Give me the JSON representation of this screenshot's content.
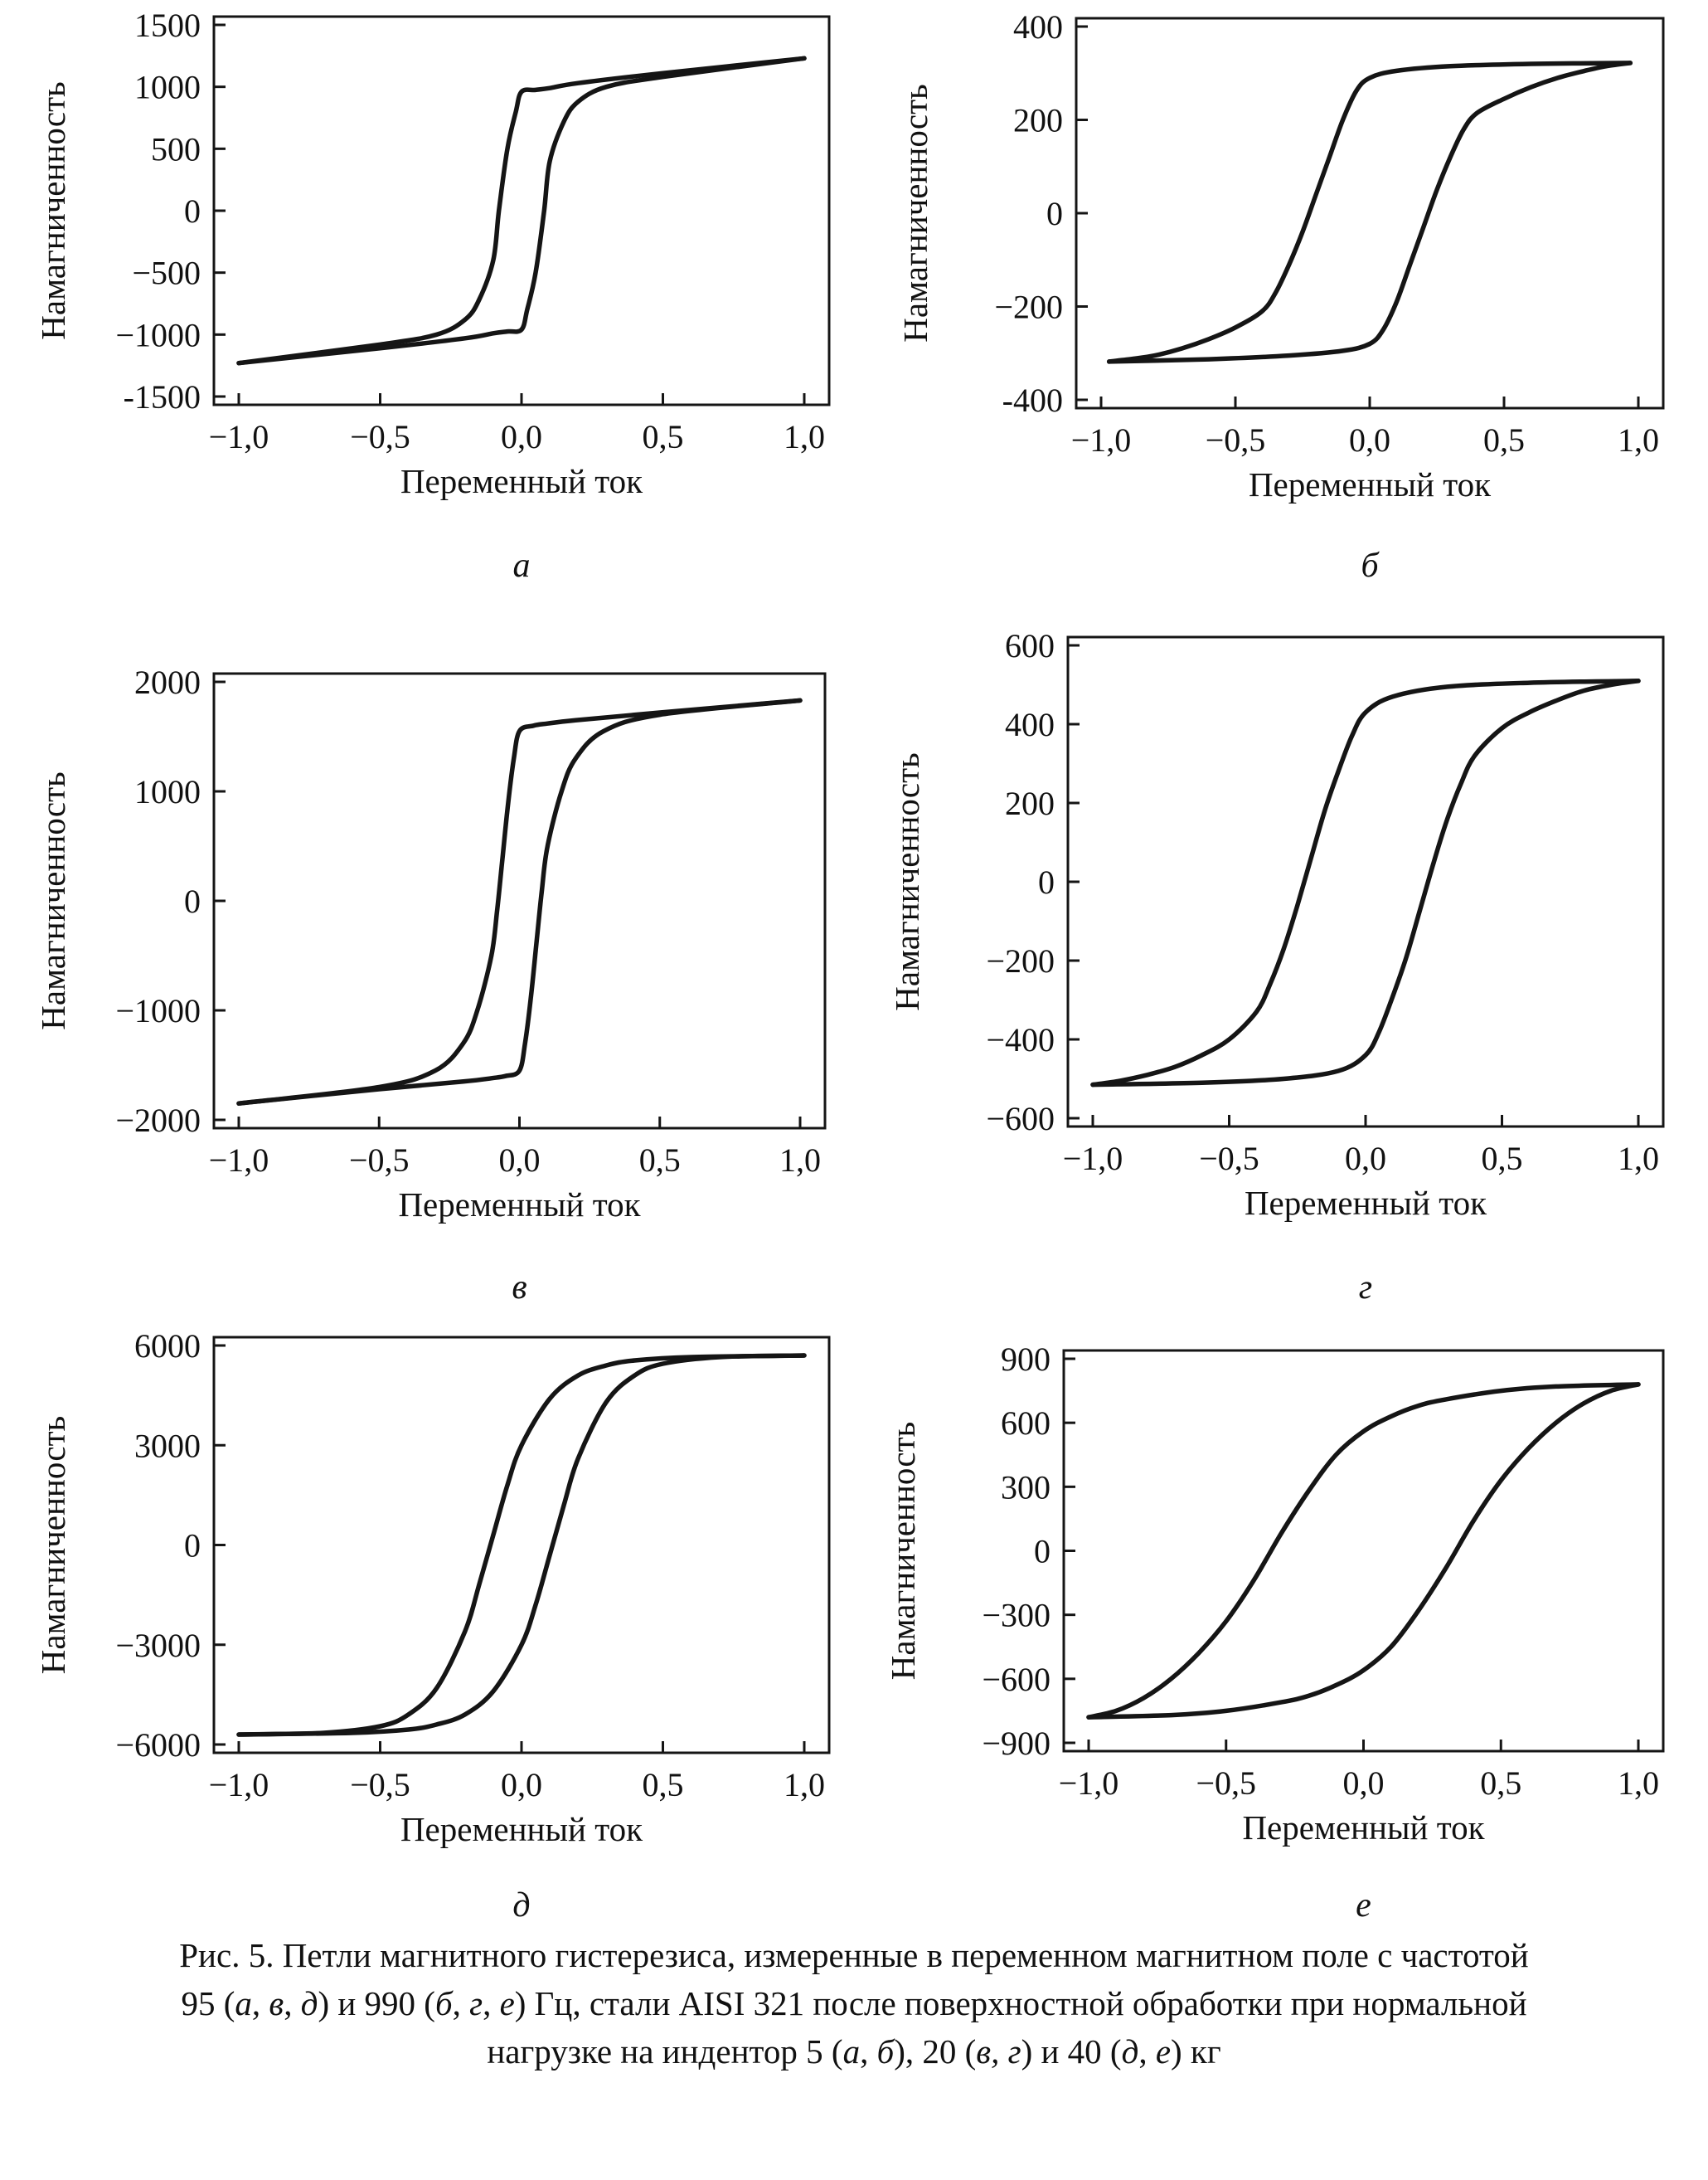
{
  "chart_data": [
    {
      "type": "line",
      "panel_label": "а",
      "xlabel": "Переменный ток",
      "ylabel": "Намагниченность",
      "xlim": [
        -1.0,
        1.0
      ],
      "ylim": [
        -1500,
        1500
      ],
      "xticks": [
        "−1,0",
        "−0,5",
        "0,0",
        "0,5",
        "1,0"
      ],
      "xtick_values": [
        -1.0,
        -0.5,
        0.0,
        0.5,
        1.0
      ],
      "yticks": [
        "1500",
        "1000",
        "500",
        "0",
        "−500",
        "−1000",
        "-1500"
      ],
      "ytick_values": [
        1500,
        1000,
        500,
        0,
        -500,
        -1000,
        -1500
      ],
      "branches": [
        {
          "name": "",
          "x": [
            1.0,
            0.5,
            0.2,
            0.1,
            0.05,
            0.0,
            -0.02,
            -0.05,
            -0.08,
            -0.1,
            -0.15,
            -0.2,
            -0.3,
            -0.5,
            -1.0
          ],
          "y": [
            1230,
            1110,
            1030,
            990,
            975,
            960,
            800,
            500,
            0,
            -400,
            -720,
            -880,
            -1000,
            -1080,
            -1230
          ]
        },
        {
          "name": "",
          "x": [
            -1.0,
            -0.5,
            -0.2,
            -0.1,
            -0.05,
            0.0,
            0.02,
            0.05,
            0.08,
            0.1,
            0.15,
            0.2,
            0.3,
            0.5,
            1.0
          ],
          "y": [
            -1230,
            -1110,
            -1030,
            -990,
            -975,
            -960,
            -800,
            -500,
            0,
            400,
            720,
            880,
            1000,
            1080,
            1230
          ]
        }
      ]
    },
    {
      "type": "line",
      "panel_label": "б",
      "xlabel": "Переменный ток",
      "ylabel": "Намагниченность",
      "xlim": [
        -1.0,
        1.0
      ],
      "ylim": [
        -400,
        400
      ],
      "xticks": [
        "−1,0",
        "−0,5",
        "0,0",
        "0,5",
        "1,0"
      ],
      "xtick_values": [
        -1.0,
        -0.5,
        0.0,
        0.5,
        1.0
      ],
      "yticks": [
        "400",
        "200",
        "0",
        "−200",
        "-400"
      ],
      "ytick_values": [
        400,
        200,
        0,
        -200,
        -400
      ],
      "branches": [
        {
          "name": "",
          "x": [
            0.97,
            0.6,
            0.3,
            0.1,
            0.0,
            -0.05,
            -0.1,
            -0.15,
            -0.2,
            -0.25,
            -0.3,
            -0.35,
            -0.4,
            -0.5,
            -0.6,
            -0.7,
            -0.8,
            -0.88,
            -0.97
          ],
          "y": [
            322,
            320,
            315,
            305,
            290,
            262,
            200,
            120,
            40,
            -40,
            -110,
            -170,
            -210,
            -245,
            -270,
            -290,
            -305,
            -312,
            -318
          ]
        },
        {
          "name": "",
          "x": [
            -0.97,
            -0.6,
            -0.3,
            -0.1,
            0.0,
            0.05,
            0.1,
            0.15,
            0.2,
            0.25,
            0.3,
            0.35,
            0.4,
            0.5,
            0.6,
            0.7,
            0.8,
            0.88,
            0.97
          ],
          "y": [
            -318,
            -313,
            -305,
            -295,
            -280,
            -250,
            -190,
            -110,
            -30,
            50,
            120,
            180,
            215,
            245,
            270,
            290,
            305,
            315,
            322
          ]
        }
      ]
    },
    {
      "type": "line",
      "panel_label": "в",
      "xlabel": "Переменный ток",
      "ylabel": "Намагниченность",
      "xlim": [
        -1.0,
        1.0
      ],
      "ylim": [
        -2000,
        2000
      ],
      "xticks": [
        "−1,0",
        "−0,5",
        "0,0",
        "0,5",
        "1,0"
      ],
      "xtick_values": [
        -1.0,
        -0.5,
        0.0,
        0.5,
        1.0
      ],
      "yticks": [
        "2000",
        "1000",
        "0",
        "−1000",
        "−2000"
      ],
      "ytick_values": [
        2000,
        1000,
        0,
        -1000,
        -2000
      ],
      "branches": [
        {
          "name": "",
          "x": [
            1.0,
            0.5,
            0.2,
            0.1,
            0.05,
            0.0,
            -0.02,
            -0.04,
            -0.06,
            -0.08,
            -0.1,
            -0.15,
            -0.2,
            -0.3,
            -0.5,
            -1.0
          ],
          "y": [
            1830,
            1720,
            1650,
            1620,
            1600,
            1550,
            1300,
            900,
            400,
            -100,
            -500,
            -1000,
            -1300,
            -1550,
            -1700,
            -1850
          ]
        },
        {
          "name": "",
          "x": [
            -1.0,
            -0.5,
            -0.2,
            -0.1,
            -0.05,
            0.0,
            0.02,
            0.04,
            0.06,
            0.08,
            0.1,
            0.15,
            0.2,
            0.3,
            0.5,
            1.0
          ],
          "y": [
            -1850,
            -1720,
            -1650,
            -1620,
            -1600,
            -1550,
            -1300,
            -900,
            -400,
            100,
            500,
            1000,
            1300,
            1550,
            1700,
            1830
          ]
        }
      ]
    },
    {
      "type": "line",
      "panel_label": "г",
      "xlabel": "Переменный ток",
      "ylabel": "Намагниченность",
      "xlim": [
        -1.0,
        1.0
      ],
      "ylim": [
        -600,
        600
      ],
      "xticks": [
        "−1,0",
        "−0,5",
        "0,0",
        "0,5",
        "1,0"
      ],
      "xtick_values": [
        -1.0,
        -0.5,
        0.0,
        0.5,
        1.0
      ],
      "yticks": [
        "600",
        "400",
        "200",
        "0",
        "−200",
        "−400",
        "−600"
      ],
      "ytick_values": [
        600,
        400,
        200,
        0,
        -200,
        -400,
        -600
      ],
      "branches": [
        {
          "name": "",
          "x": [
            1.0,
            0.6,
            0.3,
            0.1,
            0.0,
            -0.05,
            -0.1,
            -0.15,
            -0.2,
            -0.25,
            -0.3,
            -0.35,
            -0.4,
            -0.5,
            -0.6,
            -0.7,
            -0.8,
            -0.9,
            -1.0
          ],
          "y": [
            510,
            505,
            495,
            470,
            430,
            370,
            280,
            180,
            60,
            -60,
            -170,
            -260,
            -330,
            -400,
            -440,
            -470,
            -490,
            -505,
            -515
          ]
        },
        {
          "name": "",
          "x": [
            -1.0,
            -0.6,
            -0.3,
            -0.1,
            0.0,
            0.05,
            0.1,
            0.15,
            0.2,
            0.25,
            0.3,
            0.35,
            0.4,
            0.5,
            0.6,
            0.7,
            0.8,
            0.9,
            1.0
          ],
          "y": [
            -515,
            -510,
            -500,
            -480,
            -440,
            -380,
            -290,
            -190,
            -70,
            50,
            160,
            250,
            320,
            390,
            430,
            460,
            485,
            500,
            510
          ]
        }
      ]
    },
    {
      "type": "line",
      "panel_label": "д",
      "xlabel": "Переменный ток",
      "ylabel": "Намагниченность",
      "xlim": [
        -1.0,
        1.0
      ],
      "ylim": [
        -6000,
        6000
      ],
      "xticks": [
        "−1,0",
        "−0,5",
        "0,0",
        "0,5",
        "1,0"
      ],
      "xtick_values": [
        -1.0,
        -0.5,
        0.0,
        0.5,
        1.0
      ],
      "yticks": [
        "6000",
        "3000",
        "0",
        "−3000",
        "−6000"
      ],
      "ytick_values": [
        6000,
        3000,
        0,
        -3000,
        -6000
      ],
      "branches": [
        {
          "name": "",
          "x": [
            1.0,
            0.6,
            0.4,
            0.3,
            0.2,
            0.1,
            0.0,
            -0.05,
            -0.1,
            -0.15,
            -0.2,
            -0.3,
            -0.4,
            -0.5,
            -0.7,
            -1.0
          ],
          "y": [
            5700,
            5650,
            5550,
            5400,
            5100,
            4400,
            3000,
            1800,
            300,
            -1200,
            -2600,
            -4300,
            -5100,
            -5450,
            -5650,
            -5700
          ]
        },
        {
          "name": "",
          "x": [
            -1.0,
            -0.6,
            -0.4,
            -0.3,
            -0.2,
            -0.1,
            0.0,
            0.05,
            0.1,
            0.15,
            0.2,
            0.3,
            0.4,
            0.5,
            0.7,
            1.0
          ],
          "y": [
            -5700,
            -5650,
            -5550,
            -5400,
            -5100,
            -4400,
            -3000,
            -1800,
            -300,
            1200,
            2600,
            4300,
            5100,
            5450,
            5650,
            5700
          ]
        }
      ]
    },
    {
      "type": "line",
      "panel_label": "е",
      "xlabel": "Переменный ток",
      "ylabel": "Намагниченность",
      "xlim": [
        -1.0,
        1.0
      ],
      "ylim": [
        -900,
        900
      ],
      "xticks": [
        "−1,0",
        "−0,5",
        "0,0",
        "0,5",
        "1,0"
      ],
      "xtick_values": [
        -1.0,
        -0.5,
        0.0,
        0.5,
        1.0
      ],
      "yticks": [
        "900",
        "600",
        "300",
        "0",
        "−300",
        "−600",
        "−900"
      ],
      "ytick_values": [
        900,
        600,
        300,
        0,
        -300,
        -600,
        -900
      ],
      "branches": [
        {
          "name": "",
          "x": [
            1.0,
            0.7,
            0.5,
            0.3,
            0.2,
            0.1,
            0.0,
            -0.1,
            -0.2,
            -0.3,
            -0.4,
            -0.5,
            -0.6,
            -0.7,
            -0.8,
            -0.9,
            -1.0
          ],
          "y": [
            780,
            770,
            750,
            710,
            680,
            630,
            560,
            450,
            280,
            80,
            -140,
            -330,
            -480,
            -600,
            -690,
            -750,
            -780
          ]
        },
        {
          "name": "",
          "x": [
            -1.0,
            -0.7,
            -0.5,
            -0.3,
            -0.2,
            -0.1,
            0.0,
            0.1,
            0.2,
            0.3,
            0.4,
            0.5,
            0.6,
            0.7,
            0.8,
            0.9,
            1.0
          ],
          "y": [
            -780,
            -770,
            -750,
            -710,
            -680,
            -630,
            -560,
            -450,
            -280,
            -80,
            140,
            330,
            480,
            600,
            690,
            750,
            780
          ]
        }
      ]
    }
  ],
  "caption": {
    "line1": "Рис. 5. Петли магнитного гистерезиса, измеренные в переменном магнитном поле с частотой",
    "line2": [
      {
        "t": "95 (",
        "i": false
      },
      {
        "t": "а",
        "i": true
      },
      {
        "t": ", ",
        "i": false
      },
      {
        "t": "в",
        "i": true
      },
      {
        "t": ", ",
        "i": false
      },
      {
        "t": "д",
        "i": true
      },
      {
        "t": ") и 990 (",
        "i": false
      },
      {
        "t": "б",
        "i": true
      },
      {
        "t": ", ",
        "i": false
      },
      {
        "t": "г",
        "i": true
      },
      {
        "t": ", ",
        "i": false
      },
      {
        "t": "е",
        "i": true
      },
      {
        "t": ") Гц, стали AISI 321 после поверхностной обработки при нормальной",
        "i": false
      }
    ],
    "line3": [
      {
        "t": "нагрузке на индентор 5 (",
        "i": false
      },
      {
        "t": "а",
        "i": true
      },
      {
        "t": ", ",
        "i": false
      },
      {
        "t": "б",
        "i": true
      },
      {
        "t": "), 20 (",
        "i": false
      },
      {
        "t": "в, г",
        "i": true
      },
      {
        "t": ") и 40 (",
        "i": false
      },
      {
        "t": "д",
        "i": true
      },
      {
        "t": ", ",
        "i": false
      },
      {
        "t": "е",
        "i": true
      },
      {
        "t": ") кг",
        "i": false
      }
    ]
  }
}
